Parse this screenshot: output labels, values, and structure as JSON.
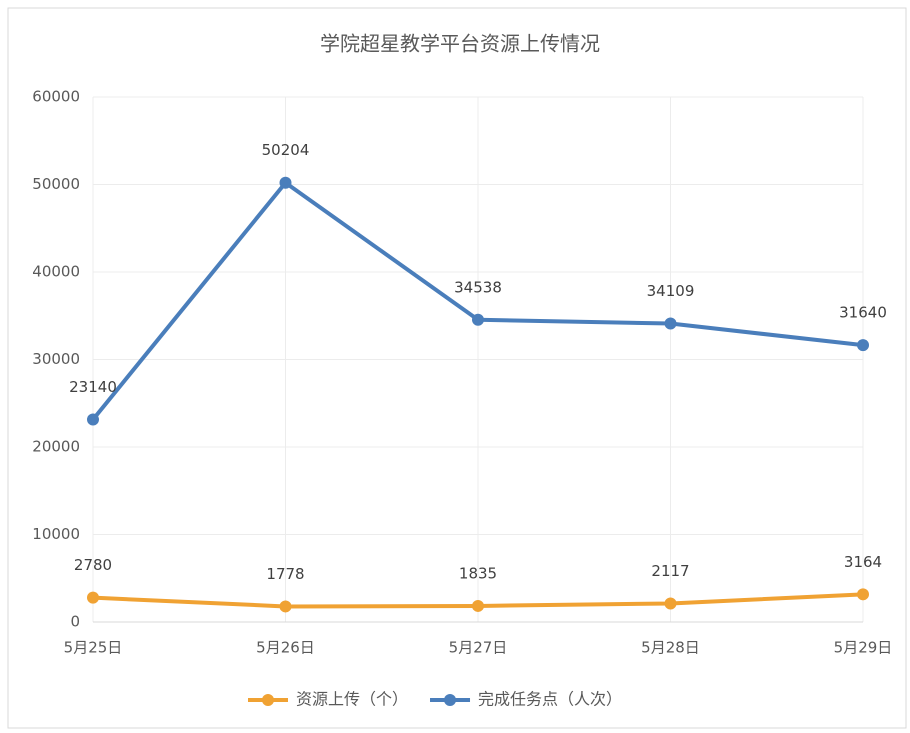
{
  "chart_data": {
    "type": "line",
    "title": "学院超星教学平台资源上传情况",
    "categories": [
      "5月25日",
      "5月26日",
      "5月27日",
      "5月28日",
      "5月29日"
    ],
    "series": [
      {
        "name": "资源上传（个）",
        "color": "#f0a233",
        "values": [
          2780,
          1778,
          1835,
          2117,
          3164
        ]
      },
      {
        "name": "完成任务点（人次）",
        "color": "#4a7ebb",
        "values": [
          23140,
          50204,
          34538,
          34109,
          31640
        ]
      }
    ],
    "ylim": [
      0,
      60000
    ],
    "yticks": [
      0,
      10000,
      20000,
      30000,
      40000,
      50000,
      60000
    ],
    "grid": true,
    "legend": "bottom",
    "data_labels": true
  }
}
